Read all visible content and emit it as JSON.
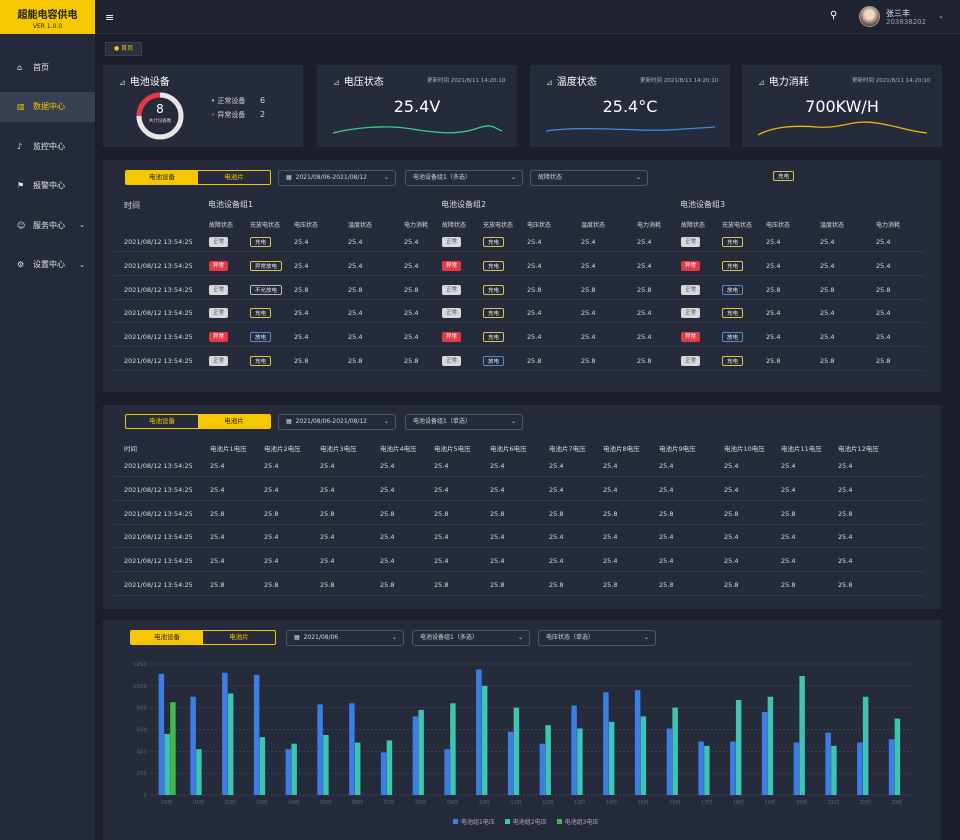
{
  "brand": {
    "title": "超能电容供电",
    "version": "VER 1.0.0"
  },
  "nav": [
    {
      "label": "首页",
      "icon": "home-icon",
      "glyph": "⌂",
      "chev": false,
      "active": false
    },
    {
      "label": "数据中心",
      "icon": "chart-icon",
      "glyph": "▥",
      "chev": false,
      "active": true
    },
    {
      "label": "监控中心",
      "icon": "bell-icon",
      "glyph": "♪",
      "chev": false,
      "active": false
    },
    {
      "label": "报警中心",
      "icon": "alarm-icon",
      "glyph": "⚑",
      "chev": false,
      "active": false
    },
    {
      "label": "服务中心",
      "icon": "user-icon",
      "glyph": "☺",
      "chev": true,
      "active": false
    },
    {
      "label": "设置中心",
      "icon": "gear-icon",
      "glyph": "⚙",
      "chev": true,
      "active": false
    }
  ],
  "user": {
    "name": "张三丰",
    "id": "203838202"
  },
  "breadcrumb": "● 首页",
  "summary": {
    "battery": {
      "title": "电池设备",
      "count": "8",
      "count_label": "共计设备数",
      "normal_label": "正常设备",
      "normal_value": "6",
      "abnormal_label": "异常设备",
      "abnormal_value": "2",
      "normal_fraction": 0.75
    },
    "cards": [
      {
        "title": "电压状态",
        "updated": "更新时间 2021/8/11 14:20:10",
        "value": "25.4V",
        "color": "#3ec98a"
      },
      {
        "title": "温度状态",
        "updated": "更新时间 2021/8/11 14:20:10",
        "value": "25.4°C",
        "color": "#3f8ae0"
      },
      {
        "title": "电力消耗",
        "updated": "更新时间 2021/8/11 14:20:10",
        "value": "700KW/H",
        "color": "#e8b90c"
      }
    ]
  },
  "panel1": {
    "tabs": [
      "电池设备",
      "电池片"
    ],
    "date": "2021/08/06-2021/08/12",
    "group_select": "电池设备组1（多选）",
    "fault_select": "故障状态",
    "charge_tag": "充电",
    "time_header": "时间",
    "groups": [
      "电池设备组1",
      "电池设备组2",
      "电池设备组3"
    ],
    "sub_headers": [
      "故障状态",
      "充放电状态",
      "电压状态",
      "温度状态",
      "电力消耗"
    ],
    "rows": [
      {
        "time": "2021/08/12 13:54:25",
        "v": "25.4",
        "g": [
          {
            "f": "正常",
            "c": "充电"
          },
          {
            "f": "正常",
            "c": "充电"
          },
          {
            "f": "正常",
            "c": "充电"
          }
        ]
      },
      {
        "time": "2021/08/12 13:54:25",
        "v": "25.4",
        "g": [
          {
            "f": "异常",
            "c": "异常放电"
          },
          {
            "f": "异常",
            "c": "充电"
          },
          {
            "f": "异常",
            "c": "充电"
          }
        ]
      },
      {
        "time": "2021/08/12 13:54:25",
        "v": "25.8",
        "g": [
          {
            "f": "正常",
            "c": "不允放电"
          },
          {
            "f": "正常",
            "c": "充电"
          },
          {
            "f": "正常",
            "c": "放电"
          }
        ]
      },
      {
        "time": "2021/08/12 13:54:25",
        "v": "25.4",
        "g": [
          {
            "f": "正常",
            "c": "充电"
          },
          {
            "f": "正常",
            "c": "充电"
          },
          {
            "f": "正常",
            "c": "充电"
          }
        ]
      },
      {
        "time": "2021/08/12 13:54:25",
        "v": "25.4",
        "g": [
          {
            "f": "异常",
            "c": "放电"
          },
          {
            "f": "异常",
            "c": "充电"
          },
          {
            "f": "异常",
            "c": "放电"
          }
        ]
      },
      {
        "time": "2021/08/12 13:54:25",
        "v": "25.8",
        "g": [
          {
            "f": "正常",
            "c": "充电"
          },
          {
            "f": "正常",
            "c": "放电"
          },
          {
            "f": "正常",
            "c": "充电"
          }
        ]
      }
    ]
  },
  "panel2": {
    "tabs": [
      "电池设备",
      "电池片"
    ],
    "date": "2021/08/06-2021/08/12",
    "group_select": "电池设备组1（单选）",
    "headers": [
      "时间",
      "电池片1电压",
      "电池片2电压",
      "电池片3电压",
      "电池片4电压",
      "电池片5电压",
      "电池片6电压",
      "电池片7电压",
      "电池片8电压",
      "电池片9电压",
      "电池片10电压",
      "电池片11电压",
      "电池片12电压"
    ],
    "rows": [
      {
        "time": "2021/08/12 13:54:25",
        "v": "25.4"
      },
      {
        "time": "2021/08/12 13:54:25",
        "v": "25.4"
      },
      {
        "time": "2021/08/12 13:54:25",
        "v": "25.8"
      },
      {
        "time": "2021/08/12 13:54:25",
        "v": "25.4"
      },
      {
        "time": "2021/08/12 13:54:25",
        "v": "25.4"
      },
      {
        "time": "2021/08/12 13:54:25",
        "v": "25.8"
      }
    ]
  },
  "panel3": {
    "tabs": [
      "电池设备",
      "电池片"
    ],
    "date": "2021/08/06",
    "group_select": "电池设备组1（多选）",
    "state_select": "电压状态（单选）"
  },
  "chart_data": {
    "type": "bar",
    "ylim": [
      0,
      1200
    ],
    "yticks": [
      "0",
      "200",
      "400",
      "600",
      "800",
      "1000",
      "1200"
    ],
    "categories": [
      "00时",
      "01时",
      "02时",
      "03时",
      "04时",
      "05时",
      "06时",
      "07时",
      "08时",
      "09时",
      "10时",
      "11时",
      "12时",
      "13时",
      "14时",
      "15时",
      "16时",
      "17时",
      "18时",
      "19时",
      "20时",
      "21时",
      "22时",
      "23时"
    ],
    "series": [
      {
        "name": "电池组1电压",
        "color": "#3a7ee6",
        "values": [
          1110,
          900,
          1120,
          1100,
          420,
          830,
          840,
          390,
          720,
          420,
          1150,
          580,
          470,
          820,
          940,
          960,
          610,
          490,
          490,
          760,
          480,
          570,
          480,
          510
        ]
      },
      {
        "name": "电池组2电压",
        "color": "#3ec4b0",
        "values": [
          560,
          420,
          930,
          530,
          470,
          550,
          480,
          500,
          780,
          840,
          1000,
          800,
          640,
          610,
          670,
          720,
          800,
          450,
          870,
          900,
          1090,
          450,
          900,
          700
        ]
      },
      {
        "name": "电池组3电压",
        "color": "#44b84c",
        "values": [
          850,
          0,
          0,
          0,
          0,
          0,
          0,
          0,
          0,
          0,
          0,
          0,
          0,
          0,
          0,
          0,
          0,
          0,
          0,
          0,
          0,
          0,
          0,
          0
        ]
      }
    ]
  }
}
